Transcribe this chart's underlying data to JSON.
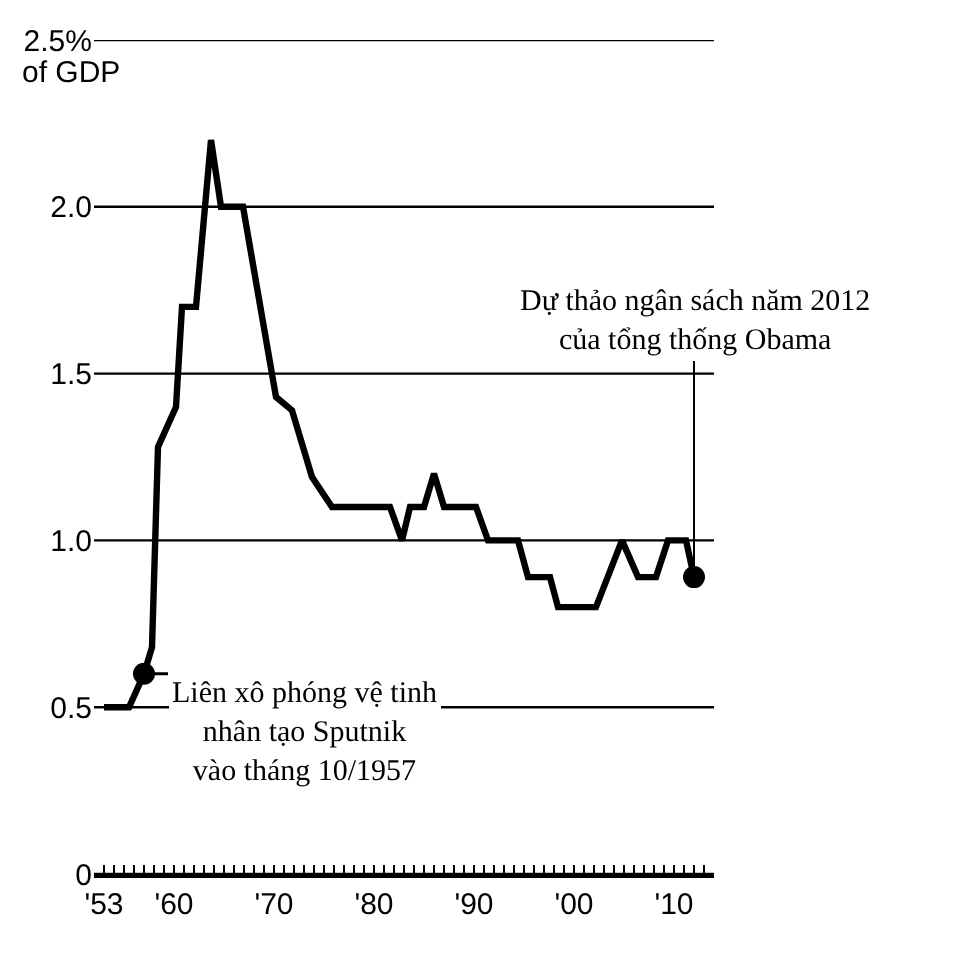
{
  "chart_data": {
    "type": "line",
    "ylabel": "of GDP",
    "x": [
      1953,
      1955.5,
      1957,
      1957.8,
      1958.4,
      1960.2,
      1960.8,
      1962.2,
      1963.7,
      1964.7,
      1966.9,
      1970.2,
      1971.8,
      1973.8,
      1975.8,
      1981.6,
      1982.8,
      1983.6,
      1985,
      1986,
      1987,
      1990.2,
      1991.4,
      1994.4,
      1995.4,
      1997.6,
      1998.4,
      2002.2,
      2004.8,
      2006.4,
      2008.2,
      2009.4,
      2011.2,
      2012
    ],
    "series": [
      {
        "color": "#000000",
        "values": [
          0.5,
          0.5,
          0.6,
          0.68,
          1.28,
          1.4,
          1.7,
          1.7,
          2.2,
          2.0,
          2.0,
          1.43,
          1.39,
          1.19,
          1.1,
          1.1,
          1.0,
          1.1,
          1.1,
          1.2,
          1.1,
          1.1,
          1.0,
          1.0,
          0.89,
          0.89,
          0.8,
          0.8,
          1.0,
          0.89,
          0.89,
          1.0,
          1.0,
          0.89
        ]
      }
    ],
    "xlim": [
      1952,
      2014
    ],
    "xticks": [
      {
        "value": 1953,
        "label": "'53"
      },
      {
        "value": 1960,
        "label": "'60"
      },
      {
        "value": 1970,
        "label": "'70"
      },
      {
        "value": 1980,
        "label": "'80"
      },
      {
        "value": 1990,
        "label": "'90"
      },
      {
        "value": 2000,
        "label": "'00"
      },
      {
        "value": 2010,
        "label": "'10"
      },
      {
        "value": 1954,
        "label": null
      },
      {
        "value": 1955,
        "label": null
      },
      {
        "value": 1956,
        "label": null
      },
      {
        "value": 1957,
        "label": null
      },
      {
        "value": 1958,
        "label": null
      },
      {
        "value": 1959,
        "label": null
      },
      {
        "value": 1961,
        "label": null
      },
      {
        "value": 1962,
        "label": null
      },
      {
        "value": 1963,
        "label": null
      },
      {
        "value": 1964,
        "label": null
      },
      {
        "value": 1965,
        "label": null
      },
      {
        "value": 1966,
        "label": null
      },
      {
        "value": 1967,
        "label": null
      },
      {
        "value": 1968,
        "label": null
      },
      {
        "value": 1969,
        "label": null
      },
      {
        "value": 1971,
        "label": null
      },
      {
        "value": 1972,
        "label": null
      },
      {
        "value": 1973,
        "label": null
      },
      {
        "value": 1974,
        "label": null
      },
      {
        "value": 1975,
        "label": null
      },
      {
        "value": 1976,
        "label": null
      },
      {
        "value": 1977,
        "label": null
      },
      {
        "value": 1978,
        "label": null
      },
      {
        "value": 1979,
        "label": null
      },
      {
        "value": 1981,
        "label": null
      },
      {
        "value": 1982,
        "label": null
      },
      {
        "value": 1983,
        "label": null
      },
      {
        "value": 1984,
        "label": null
      },
      {
        "value": 1985,
        "label": null
      },
      {
        "value": 1986,
        "label": null
      },
      {
        "value": 1987,
        "label": null
      },
      {
        "value": 1988,
        "label": null
      },
      {
        "value": 1989,
        "label": null
      },
      {
        "value": 1991,
        "label": null
      },
      {
        "value": 1992,
        "label": null
      },
      {
        "value": 1993,
        "label": null
      },
      {
        "value": 1994,
        "label": null
      },
      {
        "value": 1995,
        "label": null
      },
      {
        "value": 1996,
        "label": null
      },
      {
        "value": 1997,
        "label": null
      },
      {
        "value": 1998,
        "label": null
      },
      {
        "value": 1999,
        "label": null
      },
      {
        "value": 2001,
        "label": null
      },
      {
        "value": 2002,
        "label": null
      },
      {
        "value": 2003,
        "label": null
      },
      {
        "value": 2004,
        "label": null
      },
      {
        "value": 2005,
        "label": null
      },
      {
        "value": 2006,
        "label": null
      },
      {
        "value": 2007,
        "label": null
      },
      {
        "value": 2008,
        "label": null
      },
      {
        "value": 2009,
        "label": null
      },
      {
        "value": 2011,
        "label": null
      },
      {
        "value": 2012,
        "label": null
      },
      {
        "value": 2013,
        "label": null
      }
    ],
    "ylim": [
      0,
      2.5
    ],
    "yticks": [
      0,
      0.5,
      {
        "value": 1.0,
        "label": "1.0"
      },
      1.5,
      {
        "value": 2.0,
        "label": "2.0"
      },
      {
        "value": 2.5,
        "label": "2.5%"
      }
    ],
    "grid": "y",
    "marker": "none",
    "line_style": "solid",
    "annotations": [
      {
        "text": "Liên xô phóng vệ tinh\nnhân tạo Sputnik\nvào tháng 10/1957",
        "x": 1957,
        "y": 0.6
      },
      {
        "text": "Dự thảo ngân sách năm 2012\ncủa tổng thống Obama",
        "x": 2012,
        "y": 0.89
      }
    ]
  }
}
